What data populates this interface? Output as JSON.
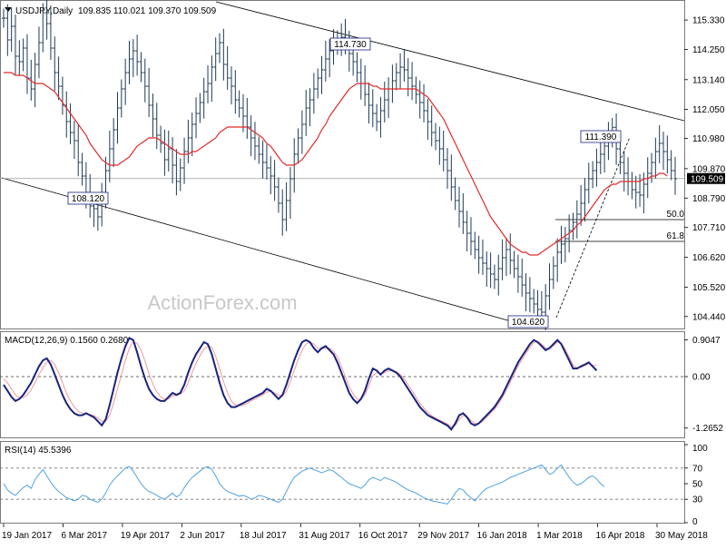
{
  "header": {
    "symbol": "USDJPY,Daily",
    "ohlc": "109.835 110.021 109.370 109.509",
    "indicator_icon": "triangle-down-icon"
  },
  "watermark": "ActionForex.com",
  "chart_data": [
    {
      "type": "candlestick",
      "title": "USDJPY,Daily",
      "ylim": [
        104.0,
        116.0
      ],
      "y_ticks": [
        "115.330",
        "114.250",
        "113.140",
        "112.050",
        "110.980",
        "109.870",
        "108.790",
        "107.710",
        "106.620",
        "105.520",
        "104.440"
      ],
      "current_price": "109.509",
      "x_ticks": [
        "19 Jan 2017",
        "6 Mar 2017",
        "19 Apr 2017",
        "2 Jun 2017",
        "18 Jul 2017",
        "31 Aug 2017",
        "16 Oct 2017",
        "29 Nov 2017",
        "16 Jan 2018",
        "1 Mar 2018",
        "16 Apr 2018",
        "30 May 2018"
      ],
      "series": [
        {
          "name": "price",
          "color": "#1f3b57",
          "values": [
            115.4,
            114.6,
            115.1,
            114.0,
            113.8,
            114.3,
            113.2,
            112.8,
            113.7,
            114.5,
            115.6,
            115.2,
            114.3,
            113.4,
            112.9,
            112.2,
            111.6,
            111.2,
            110.9,
            110.1,
            109.6,
            109.0,
            108.5,
            108.4,
            108.1,
            109.0,
            109.8,
            110.6,
            111.3,
            112.1,
            112.8,
            113.4,
            113.9,
            114.2,
            113.8,
            113.4,
            112.9,
            112.2,
            111.7,
            111.1,
            110.8,
            110.2,
            110.6,
            110.0,
            109.4,
            109.9,
            110.5,
            111.0,
            111.5,
            111.9,
            112.3,
            112.7,
            113.0,
            113.6,
            114.1,
            114.5,
            113.7,
            113.2,
            112.9,
            112.4,
            112.1,
            111.8,
            111.4,
            111.0,
            110.7,
            110.4,
            110.1,
            109.9,
            109.6,
            109.2,
            108.6,
            108.0,
            108.7,
            109.5,
            110.4,
            111.0,
            111.5,
            112.1,
            112.4,
            112.8,
            113.2,
            113.5,
            113.9,
            114.2,
            114.4,
            114.6,
            114.7,
            114.5,
            114.1,
            113.8,
            113.4,
            113.0,
            112.6,
            112.2,
            111.9,
            111.6,
            112.0,
            112.4,
            112.8,
            113.1,
            113.4,
            113.6,
            113.5,
            113.2,
            112.9,
            112.6,
            112.3,
            112.0,
            111.6,
            111.2,
            110.9,
            110.6,
            110.2,
            109.8,
            109.2,
            108.7,
            108.3,
            107.9,
            107.5,
            107.2,
            106.9,
            106.6,
            106.4,
            106.2,
            106.0,
            105.8,
            106.2,
            106.6,
            106.9,
            106.5,
            106.2,
            105.9,
            105.6,
            105.3,
            105.1,
            104.9,
            104.7,
            104.6,
            105.2,
            105.8,
            106.3,
            106.8,
            107.1,
            107.3,
            107.6,
            107.9,
            108.2,
            108.6,
            109.1,
            109.5,
            109.8,
            110.1,
            110.4,
            110.7,
            111.0,
            111.39,
            110.6,
            110.1,
            109.7,
            109.4,
            109.1,
            109.0,
            108.9,
            109.3,
            109.7,
            110.1,
            110.5,
            110.8,
            110.5,
            110.2,
            109.8,
            109.5
          ]
        },
        {
          "name": "ma",
          "color": "#e32a2a",
          "values": [
            113.4,
            113.4,
            113.4,
            113.3,
            113.3,
            113.3,
            113.2,
            113.1,
            113.0,
            113.0,
            113.0,
            112.9,
            112.8,
            112.7,
            112.5,
            112.3,
            112.1,
            111.9,
            111.7,
            111.5,
            111.3,
            111.1,
            110.8,
            110.6,
            110.4,
            110.2,
            110.1,
            110.0,
            110.0,
            110.0,
            110.1,
            110.2,
            110.3,
            110.5,
            110.7,
            110.8,
            110.9,
            111.0,
            111.0,
            111.0,
            110.9,
            110.8,
            110.7,
            110.6,
            110.5,
            110.4,
            110.4,
            110.4,
            110.5,
            110.5,
            110.6,
            110.7,
            110.8,
            110.9,
            111.0,
            111.2,
            111.3,
            111.4,
            111.4,
            111.4,
            111.4,
            111.4,
            111.4,
            111.3,
            111.2,
            111.1,
            111.0,
            110.8,
            110.7,
            110.5,
            110.3,
            110.1,
            110.0,
            110.0,
            110.0,
            110.1,
            110.2,
            110.4,
            110.6,
            110.8,
            111.0,
            111.3,
            111.5,
            111.8,
            112.0,
            112.2,
            112.4,
            112.6,
            112.8,
            112.9,
            113.0,
            113.0,
            113.0,
            113.0,
            112.9,
            112.9,
            112.8,
            112.8,
            112.8,
            112.8,
            112.8,
            112.8,
            112.8,
            112.8,
            112.8,
            112.8,
            112.7,
            112.6,
            112.5,
            112.3,
            112.1,
            111.9,
            111.7,
            111.4,
            111.1,
            110.8,
            110.5,
            110.2,
            109.9,
            109.6,
            109.3,
            109.0,
            108.7,
            108.4,
            108.1,
            107.9,
            107.7,
            107.5,
            107.3,
            107.1,
            107.0,
            106.9,
            106.8,
            106.8,
            106.7,
            106.7,
            106.7,
            106.8,
            106.9,
            107.0,
            107.1,
            107.2,
            107.3,
            107.4,
            107.5,
            107.6,
            107.8,
            107.9,
            108.1,
            108.3,
            108.5,
            108.7,
            108.9,
            109.1,
            109.2,
            109.3,
            109.3,
            109.4,
            109.4,
            109.4,
            109.4,
            109.4,
            109.4,
            109.5,
            109.5,
            109.6,
            109.6,
            109.7,
            109.7,
            109.6
          ]
        }
      ],
      "annotations": [
        {
          "label": "114.730"
        },
        {
          "label": "108.120"
        },
        {
          "label": "111.390"
        },
        {
          "label": "104.620"
        },
        {
          "label": "50.0",
          "value": 108.0
        },
        {
          "label": "61.8",
          "value": 107.2
        }
      ]
    },
    {
      "type": "line",
      "title": "MACD(12,26,9) 0.1560 0.2680",
      "ylim": [
        -1.45,
        1.05
      ],
      "y_ticks": [
        "0.9047",
        "0.00",
        "-1.2652"
      ],
      "series": [
        {
          "name": "macd",
          "color": "#1a237e",
          "values": [
            -0.2,
            -0.35,
            -0.5,
            -0.6,
            -0.55,
            -0.45,
            -0.3,
            -0.15,
            0.05,
            0.25,
            0.4,
            0.45,
            0.3,
            0.05,
            -0.2,
            -0.45,
            -0.65,
            -0.8,
            -0.9,
            -0.95,
            -0.95,
            -0.9,
            -0.95,
            -1.0,
            -1.1,
            -1.2,
            -1.05,
            -0.7,
            -0.3,
            0.1,
            0.45,
            0.75,
            0.95,
            0.9,
            0.6,
            0.25,
            -0.05,
            -0.3,
            -0.45,
            -0.55,
            -0.6,
            -0.6,
            -0.5,
            -0.4,
            -0.45,
            -0.4,
            -0.2,
            0.1,
            0.35,
            0.55,
            0.7,
            0.85,
            0.8,
            0.55,
            0.2,
            -0.15,
            -0.45,
            -0.65,
            -0.75,
            -0.75,
            -0.7,
            -0.65,
            -0.6,
            -0.55,
            -0.5,
            -0.45,
            -0.4,
            -0.3,
            -0.35,
            -0.45,
            -0.55,
            -0.45,
            -0.2,
            0.1,
            0.4,
            0.65,
            0.85,
            0.9,
            0.85,
            0.7,
            0.6,
            0.7,
            0.75,
            0.65,
            0.55,
            0.35,
            0.1,
            -0.15,
            -0.4,
            -0.55,
            -0.65,
            -0.55,
            -0.35,
            -0.05,
            0.2,
            0.15,
            0.05,
            0.15,
            0.2,
            0.15,
            0.1,
            0.0,
            -0.15,
            -0.3,
            -0.45,
            -0.6,
            -0.75,
            -0.85,
            -0.95,
            -1.0,
            -1.05,
            -1.1,
            -1.15,
            -1.2,
            -1.3,
            -1.15,
            -0.95,
            -0.9,
            -1.0,
            -1.15,
            -1.2,
            -1.15,
            -1.05,
            -0.95,
            -0.85,
            -0.75,
            -0.6,
            -0.45,
            -0.25,
            -0.05,
            0.15,
            0.35,
            0.5,
            0.65,
            0.8,
            0.9,
            0.85,
            0.75,
            0.65,
            0.7,
            0.8,
            0.9,
            0.8,
            0.6,
            0.4,
            0.2,
            0.2,
            0.25,
            0.3,
            0.35,
            0.25,
            0.15
          ]
        },
        {
          "name": "signal",
          "color": "#ef9a9a",
          "values": [
            -0.05,
            -0.15,
            -0.3,
            -0.45,
            -0.52,
            -0.52,
            -0.45,
            -0.32,
            -0.15,
            0.05,
            0.22,
            0.36,
            0.4,
            0.3,
            0.1,
            -0.15,
            -0.4,
            -0.6,
            -0.75,
            -0.85,
            -0.9,
            -0.92,
            -0.93,
            -0.96,
            -1.02,
            -1.1,
            -1.1,
            -0.95,
            -0.65,
            -0.3,
            0.05,
            0.4,
            0.7,
            0.85,
            0.82,
            0.65,
            0.38,
            0.08,
            -0.18,
            -0.38,
            -0.5,
            -0.56,
            -0.55,
            -0.48,
            -0.45,
            -0.43,
            -0.35,
            -0.15,
            0.1,
            0.32,
            0.52,
            0.68,
            0.76,
            0.72,
            0.5,
            0.2,
            -0.12,
            -0.4,
            -0.6,
            -0.7,
            -0.72,
            -0.7,
            -0.66,
            -0.6,
            -0.55,
            -0.5,
            -0.45,
            -0.38,
            -0.36,
            -0.4,
            -0.46,
            -0.48,
            -0.36,
            -0.12,
            0.15,
            0.42,
            0.65,
            0.8,
            0.85,
            0.8,
            0.7,
            0.68,
            0.7,
            0.7,
            0.62,
            0.48,
            0.25,
            0.0,
            -0.25,
            -0.42,
            -0.55,
            -0.56,
            -0.45,
            -0.22,
            0.02,
            0.1,
            0.08,
            0.1,
            0.14,
            0.15,
            0.12,
            0.05,
            -0.06,
            -0.2,
            -0.35,
            -0.5,
            -0.65,
            -0.77,
            -0.88,
            -0.96,
            -1.02,
            -1.07,
            -1.12,
            -1.16,
            -1.24,
            -1.2,
            -1.05,
            -0.96,
            -0.98,
            -1.08,
            -1.15,
            -1.15,
            -1.1,
            -1.0,
            -0.9,
            -0.8,
            -0.67,
            -0.52,
            -0.34,
            -0.14,
            0.06,
            0.26,
            0.42,
            0.57,
            0.72,
            0.84,
            0.86,
            0.8,
            0.7,
            0.69,
            0.76,
            0.85,
            0.82,
            0.68,
            0.48,
            0.28,
            0.22,
            0.23,
            0.27,
            0.32,
            0.28,
            0.27
          ]
        }
      ]
    },
    {
      "type": "line",
      "title": "RSI(14) 45.5396",
      "ylim": [
        0,
        100
      ],
      "y_ticks": [
        "100",
        "70",
        "50",
        "30",
        "0"
      ],
      "levels": [
        70,
        30
      ],
      "series": [
        {
          "name": "rsi",
          "color": "#4fa3e0",
          "values": [
            50,
            42,
            38,
            35,
            40,
            45,
            48,
            44,
            55,
            62,
            68,
            60,
            52,
            45,
            40,
            36,
            32,
            30,
            28,
            30,
            35,
            34,
            30,
            28,
            26,
            30,
            38,
            48,
            55,
            60,
            65,
            70,
            72,
            66,
            58,
            50,
            44,
            40,
            38,
            35,
            32,
            30,
            34,
            38,
            33,
            36,
            45,
            52,
            58,
            62,
            66,
            70,
            72,
            68,
            60,
            50,
            44,
            40,
            38,
            36,
            34,
            35,
            33,
            30,
            32,
            35,
            34,
            32,
            30,
            28,
            26,
            30,
            40,
            50,
            58,
            62,
            66,
            68,
            70,
            68,
            66,
            64,
            66,
            68,
            66,
            62,
            58,
            54,
            50,
            48,
            46,
            44,
            48,
            55,
            58,
            56,
            54,
            58,
            56,
            54,
            52,
            48,
            45,
            42,
            40,
            38,
            35,
            32,
            30,
            28,
            27,
            26,
            25,
            24,
            30,
            38,
            44,
            42,
            36,
            32,
            28,
            34,
            40,
            44,
            46,
            48,
            50,
            52,
            55,
            58,
            60,
            62,
            64,
            66,
            68,
            70,
            72,
            74,
            68,
            62,
            64,
            70,
            74,
            66,
            58,
            52,
            48,
            50,
            54,
            58,
            60,
            56,
            50,
            46
          ]
        }
      ]
    }
  ]
}
